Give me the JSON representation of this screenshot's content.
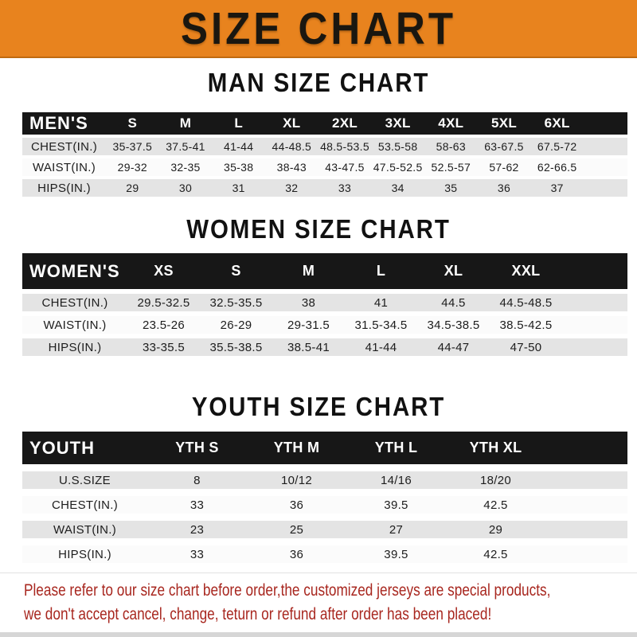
{
  "banner": {
    "title": "SIZE CHART",
    "bg_color": "#E8831E"
  },
  "chart_data": [
    {
      "type": "table",
      "title": "MAN SIZE CHART",
      "header_label": "MEN'S",
      "columns": [
        "S",
        "M",
        "L",
        "XL",
        "2XL",
        "3XL",
        "4XL",
        "5XL",
        "6XL"
      ],
      "rows": [
        {
          "label": "CHEST(IN.)",
          "values": [
            "35-37.5",
            "37.5-41",
            "41-44",
            "44-48.5",
            "48.5-53.5",
            "53.5-58",
            "58-63",
            "63-67.5",
            "67.5-72"
          ]
        },
        {
          "label": "WAIST(IN.)",
          "values": [
            "29-32",
            "32-35",
            "35-38",
            "38-43",
            "43-47.5",
            "47.5-52.5",
            "52.5-57",
            "57-62",
            "62-66.5"
          ]
        },
        {
          "label": "HIPS(IN.)",
          "values": [
            "29",
            "30",
            "31",
            "32",
            "33",
            "34",
            "35",
            "36",
            "37"
          ]
        }
      ]
    },
    {
      "type": "table",
      "title": "WOMEN SIZE CHART",
      "header_label": "WOMEN'S",
      "columns": [
        "XS",
        "S",
        "M",
        "L",
        "XL",
        "XXL"
      ],
      "rows": [
        {
          "label": "CHEST(IN.)",
          "values": [
            "29.5-32.5",
            "32.5-35.5",
            "38",
            "41",
            "44.5",
            "44.5-48.5"
          ]
        },
        {
          "label": "WAIST(IN.)",
          "values": [
            "23.5-26",
            "26-29",
            "29-31.5",
            "31.5-34.5",
            "34.5-38.5",
            "38.5-42.5"
          ]
        },
        {
          "label": "HIPS(IN.)",
          "values": [
            "33-35.5",
            "35.5-38.5",
            "38.5-41",
            "41-44",
            "44-47",
            "47-50"
          ]
        }
      ]
    },
    {
      "type": "table",
      "title": "YOUTH SIZE CHART",
      "header_label": "YOUTH",
      "columns": [
        "YTH S",
        "YTH M",
        "YTH L",
        "YTH XL"
      ],
      "rows": [
        {
          "label": "U.S.SIZE",
          "values": [
            "8",
            "10/12",
            "14/16",
            "18/20"
          ]
        },
        {
          "label": "CHEST(IN.)",
          "values": [
            "33",
            "36",
            "39.5",
            "42.5"
          ]
        },
        {
          "label": "WAIST(IN.)",
          "values": [
            "23",
            "25",
            "27",
            "29"
          ]
        },
        {
          "label": "HIPS(IN.)",
          "values": [
            "33",
            "36",
            "39.5",
            "42.5"
          ]
        }
      ]
    }
  ],
  "footer": {
    "line1": "Please refer to our size chart before order,the customized jerseys are special products,",
    "line2": "we don't accept cancel, change, teturn or refund after order has been placed!",
    "text_color": "#A8271F"
  }
}
